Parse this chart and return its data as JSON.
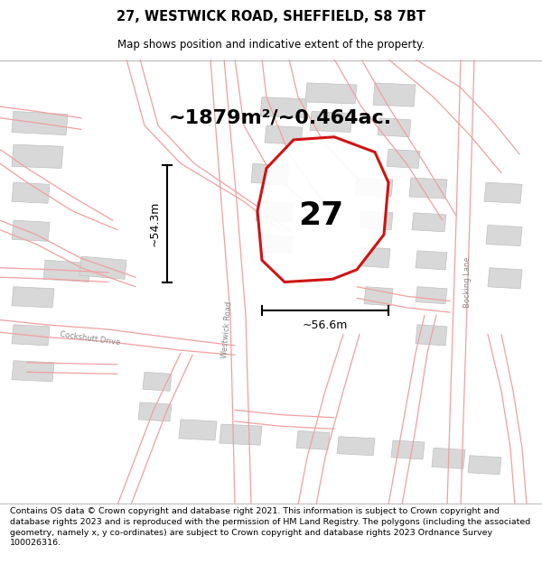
{
  "title_line1": "27, WESTWICK ROAD, SHEFFIELD, S8 7BT",
  "title_line2": "Map shows position and indicative extent of the property.",
  "area_text": "~1879m²/~0.464ac.",
  "label_27": "27",
  "label_width": "~56.6m",
  "label_height": "~54.3m",
  "footer": "Contains OS data © Crown copyright and database right 2021. This information is subject to Crown copyright and database rights 2023 and is reproduced with the permission of HM Land Registry. The polygons (including the associated geometry, namely x, y co-ordinates) are subject to Crown copyright and database rights 2023 Ordnance Survey 100026316.",
  "map_bg": "#f5f5f5",
  "building_color": "#d8d8d8",
  "building_edge": "#c0c0c0",
  "street_line_color": "#f0a0a0",
  "property_outline_color": "#cc0000",
  "road_label_color": "#888888",
  "title_fontsize": 10.5,
  "subtitle_fontsize": 8.5,
  "footer_fontsize": 6.8,
  "area_fontsize": 16,
  "label_fontsize": 26,
  "dim_fontsize": 9
}
